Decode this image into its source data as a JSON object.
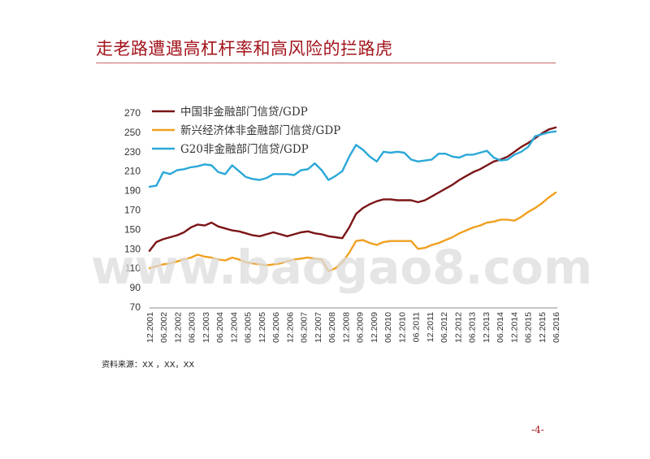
{
  "slide": {
    "title": "走老路遭遇高杠杆率和高风险的拦路虎",
    "source": "资料来源：XX ，XX，XX",
    "page_number": "-4-",
    "watermark": "www.baogao8.com"
  },
  "chart_data": {
    "type": "line",
    "title": "",
    "xlabel": "",
    "ylabel": "",
    "ylim": [
      70,
      270
    ],
    "yticks": [
      70,
      90,
      110,
      130,
      150,
      170,
      190,
      210,
      230,
      250,
      270
    ],
    "x_tick_labels": [
      "12.2001",
      "06.2002",
      "12.2002",
      "06.2003",
      "12.2003",
      "06.2004",
      "12.2004",
      "06.2005",
      "12.2005",
      "06.2006",
      "12.2006",
      "06.2007",
      "12.2007",
      "06.2008",
      "12.2008",
      "06.2009",
      "12.2009",
      "06.2010",
      "12.2010",
      "06.2011",
      "12.2011",
      "06.2012",
      "12.2012",
      "06.2013",
      "12.2013",
      "06.2014",
      "12.2014",
      "06.2015",
      "12.2015",
      "06.2016"
    ],
    "grid": false,
    "legend_position": "top-left",
    "series": [
      {
        "name": "中国非金融部门信贷/GDP",
        "color": "#7b1416",
        "values": [
          128,
          137,
          140,
          142,
          144,
          147,
          152,
          155,
          154,
          157,
          153,
          151,
          149,
          148,
          146,
          144,
          143,
          145,
          147,
          145,
          143,
          145,
          147,
          148,
          146,
          145,
          143,
          142,
          141,
          152,
          166,
          172,
          176,
          179,
          181,
          181,
          180,
          180,
          180,
          178,
          180,
          184,
          188,
          192,
          196,
          201,
          205,
          209,
          212,
          216,
          220,
          222,
          225,
          230,
          235,
          239,
          244,
          249,
          253,
          255
        ]
      },
      {
        "name": "新兴经济体非金融部门信贷/GDP",
        "color": "#f0a020",
        "values": [
          110,
          112,
          114,
          115,
          117,
          119,
          121,
          124,
          122,
          121,
          119,
          118,
          121,
          119,
          116,
          115,
          114,
          113,
          114,
          115,
          117,
          119,
          120,
          121,
          120,
          119,
          107,
          110,
          116,
          126,
          138,
          139,
          136,
          134,
          137,
          138,
          138,
          138,
          138,
          130,
          131,
          134,
          136,
          139,
          142,
          146,
          149,
          152,
          154,
          157,
          158,
          160,
          160,
          159,
          163,
          168,
          172,
          177,
          183,
          188
        ]
      },
      {
        "name": "G20非金融部门信贷/GDP",
        "color": "#2aa8d8",
        "values": [
          194,
          195,
          209,
          207,
          211,
          212,
          214,
          215,
          217,
          216,
          209,
          207,
          216,
          210,
          204,
          202,
          201,
          203,
          207,
          207,
          207,
          206,
          211,
          212,
          218,
          211,
          201,
          205,
          210,
          225,
          237,
          232,
          225,
          220,
          230,
          229,
          230,
          229,
          222,
          220,
          221,
          222,
          228,
          228,
          225,
          224,
          227,
          227,
          229,
          231,
          224,
          221,
          222,
          227,
          230,
          235,
          246,
          248,
          250,
          251
        ]
      }
    ]
  }
}
